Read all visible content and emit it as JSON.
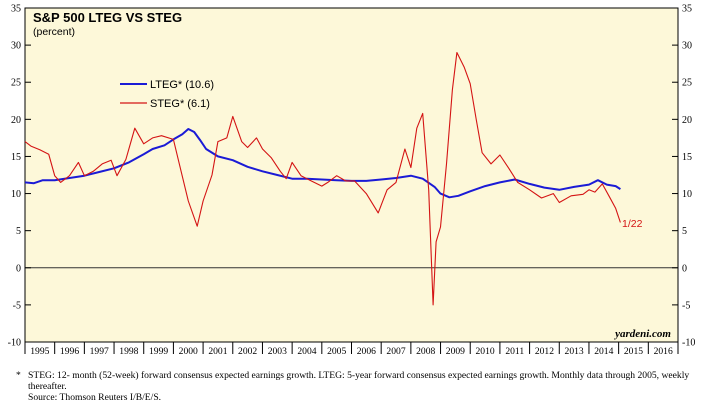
{
  "chart_data": {
    "type": "line",
    "title": "S&P 500 LTEG VS STEG",
    "subtitle": "(percent)",
    "x_tick_labels": [
      "1995",
      "1996",
      "1997",
      "1998",
      "1999",
      "2000",
      "2001",
      "2002",
      "2003",
      "2004",
      "2005",
      "2006",
      "2007",
      "2008",
      "2009",
      "2010",
      "2011",
      "2012",
      "2013",
      "2014",
      "2015",
      "2016"
    ],
    "xlim": [
      1995.0,
      2017.0
    ],
    "ylim": [
      -10,
      35
    ],
    "y_ticks": [
      -10,
      -5,
      0,
      5,
      10,
      15,
      20,
      25,
      30,
      35
    ],
    "y_tick_labels": [
      "-10",
      "-5",
      "0",
      "5",
      "10",
      "15",
      "20",
      "25",
      "30",
      "35"
    ],
    "grid": false,
    "zero_line": true,
    "legend_position": "upper-left",
    "watermark": "yardeni.com",
    "end_label": "1/22",
    "series": [
      {
        "name": "LTEG* (10.6)",
        "color": "#1b1bd6",
        "points": [
          [
            1995.0,
            11.5
          ],
          [
            1995.3,
            11.4
          ],
          [
            1995.6,
            11.8
          ],
          [
            1996.0,
            11.8
          ],
          [
            1996.5,
            12.1
          ],
          [
            1997.0,
            12.4
          ],
          [
            1997.5,
            12.9
          ],
          [
            1998.0,
            13.4
          ],
          [
            1998.5,
            14.2
          ],
          [
            1999.0,
            15.3
          ],
          [
            1999.3,
            16.0
          ],
          [
            1999.7,
            16.5
          ],
          [
            2000.0,
            17.3
          ],
          [
            2000.3,
            18.0
          ],
          [
            2000.5,
            18.7
          ],
          [
            2000.7,
            18.3
          ],
          [
            2000.9,
            17.2
          ],
          [
            2001.1,
            16.0
          ],
          [
            2001.5,
            15.0
          ],
          [
            2002.0,
            14.5
          ],
          [
            2002.5,
            13.6
          ],
          [
            2003.0,
            13.0
          ],
          [
            2003.5,
            12.5
          ],
          [
            2004.0,
            12.0
          ],
          [
            2004.5,
            12.0
          ],
          [
            2005.0,
            11.9
          ],
          [
            2005.5,
            11.8
          ],
          [
            2006.0,
            11.7
          ],
          [
            2006.5,
            11.7
          ],
          [
            2007.0,
            11.9
          ],
          [
            2007.5,
            12.1
          ],
          [
            2008.0,
            12.4
          ],
          [
            2008.4,
            12.0
          ],
          [
            2008.8,
            10.9
          ],
          [
            2009.0,
            10.0
          ],
          [
            2009.3,
            9.5
          ],
          [
            2009.6,
            9.7
          ],
          [
            2010.0,
            10.3
          ],
          [
            2010.5,
            11.0
          ],
          [
            2011.0,
            11.5
          ],
          [
            2011.5,
            11.9
          ],
          [
            2012.0,
            11.3
          ],
          [
            2012.5,
            10.8
          ],
          [
            2013.0,
            10.5
          ],
          [
            2013.5,
            10.9
          ],
          [
            2014.0,
            11.2
          ],
          [
            2014.3,
            11.8
          ],
          [
            2014.6,
            11.2
          ],
          [
            2014.9,
            11.0
          ],
          [
            2015.06,
            10.6
          ]
        ]
      },
      {
        "name": "STEG* (6.1)",
        "color": "#d41414",
        "points": [
          [
            1995.0,
            17.0
          ],
          [
            1995.2,
            16.4
          ],
          [
            1995.5,
            15.9
          ],
          [
            1995.8,
            15.3
          ],
          [
            1996.0,
            12.4
          ],
          [
            1996.2,
            11.5
          ],
          [
            1996.5,
            12.4
          ],
          [
            1996.8,
            14.2
          ],
          [
            1997.0,
            12.4
          ],
          [
            1997.3,
            13.0
          ],
          [
            1997.6,
            14.0
          ],
          [
            1997.9,
            14.5
          ],
          [
            1998.1,
            12.4
          ],
          [
            1998.4,
            14.6
          ],
          [
            1998.7,
            18.8
          ],
          [
            1999.0,
            16.7
          ],
          [
            1999.3,
            17.5
          ],
          [
            1999.6,
            17.8
          ],
          [
            2000.0,
            17.3
          ],
          [
            2000.2,
            14.0
          ],
          [
            2000.5,
            9.0
          ],
          [
            2000.8,
            5.6
          ],
          [
            2001.0,
            9.0
          ],
          [
            2001.3,
            12.5
          ],
          [
            2001.5,
            17.0
          ],
          [
            2001.8,
            17.5
          ],
          [
            2002.0,
            20.4
          ],
          [
            2002.3,
            17.0
          ],
          [
            2002.5,
            16.2
          ],
          [
            2002.8,
            17.5
          ],
          [
            2003.0,
            16.0
          ],
          [
            2003.3,
            14.8
          ],
          [
            2003.6,
            13.0
          ],
          [
            2003.8,
            12.0
          ],
          [
            2004.0,
            14.2
          ],
          [
            2004.3,
            12.4
          ],
          [
            2004.6,
            11.8
          ],
          [
            2005.0,
            11.0
          ],
          [
            2005.2,
            11.5
          ],
          [
            2005.5,
            12.4
          ],
          [
            2005.8,
            11.7
          ],
          [
            2006.1,
            11.7
          ],
          [
            2006.5,
            10.0
          ],
          [
            2006.9,
            7.4
          ],
          [
            2007.2,
            10.5
          ],
          [
            2007.5,
            11.5
          ],
          [
            2007.8,
            16.0
          ],
          [
            2008.0,
            13.5
          ],
          [
            2008.2,
            18.8
          ],
          [
            2008.4,
            20.8
          ],
          [
            2008.6,
            10.5
          ],
          [
            2008.75,
            -5.0
          ],
          [
            2008.85,
            3.5
          ],
          [
            2009.0,
            5.5
          ],
          [
            2009.2,
            14.0
          ],
          [
            2009.4,
            24.0
          ],
          [
            2009.55,
            29.0
          ],
          [
            2009.8,
            27.0
          ],
          [
            2010.0,
            24.8
          ],
          [
            2010.2,
            20.0
          ],
          [
            2010.4,
            15.5
          ],
          [
            2010.7,
            14.0
          ],
          [
            2011.0,
            15.2
          ],
          [
            2011.3,
            13.4
          ],
          [
            2011.6,
            11.5
          ],
          [
            2012.0,
            10.5
          ],
          [
            2012.4,
            9.4
          ],
          [
            2012.8,
            10.0
          ],
          [
            2013.0,
            8.8
          ],
          [
            2013.4,
            9.7
          ],
          [
            2013.8,
            9.9
          ],
          [
            2014.0,
            10.5
          ],
          [
            2014.2,
            10.2
          ],
          [
            2014.45,
            11.3
          ],
          [
            2014.7,
            9.5
          ],
          [
            2014.9,
            8.0
          ],
          [
            2015.06,
            6.1
          ]
        ]
      }
    ]
  },
  "footnote": {
    "marker": "*",
    "text": "STEG: 12- month (52-week) forward consensus expected earnings growth. LTEG: 5-year forward consensus expected earnings growth. Monthly data through 2005, weekly thereafter.",
    "source": "Source: Thomson Reuters I/B/E/S."
  }
}
